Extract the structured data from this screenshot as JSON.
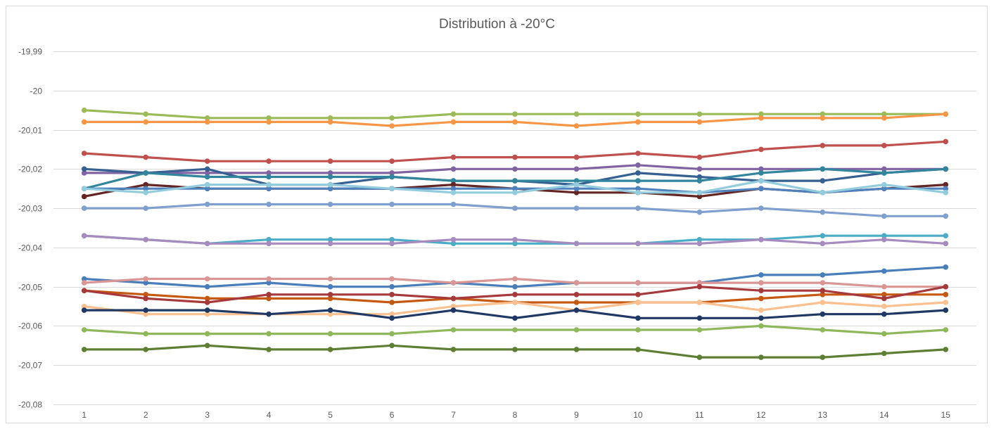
{
  "chart_data": {
    "type": "line",
    "title": "Distribution à -20°C",
    "xlabel": "",
    "ylabel": "",
    "x": [
      1,
      2,
      3,
      4,
      5,
      6,
      7,
      8,
      9,
      10,
      11,
      12,
      13,
      14,
      15
    ],
    "x_tick_labels": [
      "1",
      "2",
      "3",
      "4",
      "5",
      "6",
      "7",
      "8",
      "9",
      "10",
      "11",
      "12",
      "13",
      "14",
      "15"
    ],
    "ylim": [
      -20.08,
      -19.99
    ],
    "y_ticks": [
      -19.99,
      -20,
      -20.01,
      -20.02,
      -20.03,
      -20.04,
      -20.05,
      -20.06,
      -20.07,
      -20.08
    ],
    "y_tick_labels": [
      "-19,99",
      "-20",
      "-20,01",
      "-20,02",
      "-20,03",
      "-20,04",
      "-20,05",
      "-20,06",
      "-20,07",
      "-20,08"
    ],
    "grid": "horizontal",
    "legend": "none",
    "series": [
      {
        "color": "#9bbb59",
        "values": [
          -20.005,
          -20.006,
          -20.007,
          -20.007,
          -20.007,
          -20.007,
          -20.006,
          -20.006,
          -20.006,
          -20.006,
          -20.006,
          -20.006,
          -20.006,
          -20.006,
          -20.006
        ]
      },
      {
        "color": "#f79646",
        "values": [
          -20.008,
          -20.008,
          -20.008,
          -20.008,
          -20.008,
          -20.009,
          -20.008,
          -20.008,
          -20.009,
          -20.008,
          -20.008,
          -20.007,
          -20.007,
          -20.007,
          -20.006
        ]
      },
      {
        "color": "#c0504d",
        "values": [
          -20.016,
          -20.017,
          -20.018,
          -20.018,
          -20.018,
          -20.018,
          -20.017,
          -20.017,
          -20.017,
          -20.016,
          -20.017,
          -20.015,
          -20.014,
          -20.014,
          -20.013
        ]
      },
      {
        "color": "#8064a2",
        "values": [
          -20.021,
          -20.021,
          -20.021,
          -20.021,
          -20.021,
          -20.021,
          -20.02,
          -20.02,
          -20.02,
          -20.019,
          -20.02,
          -20.02,
          -20.02,
          -20.02,
          -20.02
        ]
      },
      {
        "color": "#376092",
        "values": [
          -20.02,
          -20.021,
          -20.02,
          -20.024,
          -20.024,
          -20.022,
          -20.023,
          -20.023,
          -20.024,
          -20.021,
          -20.022,
          -20.023,
          -20.023,
          -20.021,
          -20.02
        ]
      },
      {
        "color": "#31859c",
        "values": [
          -20.025,
          -20.021,
          -20.022,
          -20.022,
          -20.022,
          -20.022,
          -20.023,
          -20.023,
          -20.023,
          -20.023,
          -20.023,
          -20.021,
          -20.02,
          -20.021,
          -20.02
        ]
      },
      {
        "color": "#632523",
        "values": [
          -20.027,
          -20.024,
          -20.025,
          -20.025,
          -20.025,
          -20.025,
          -20.024,
          -20.025,
          -20.026,
          -20.026,
          -20.027,
          -20.025,
          -20.026,
          -20.025,
          -20.024
        ]
      },
      {
        "color": "#4f81bd",
        "values": [
          -20.025,
          -20.025,
          -20.025,
          -20.025,
          -20.025,
          -20.025,
          -20.025,
          -20.025,
          -20.025,
          -20.025,
          -20.026,
          -20.025,
          -20.026,
          -20.025,
          -20.025
        ]
      },
      {
        "color": "#93cddd",
        "values": [
          -20.025,
          -20.026,
          -20.024,
          -20.024,
          -20.024,
          -20.025,
          -20.026,
          -20.026,
          -20.024,
          -20.026,
          -20.026,
          -20.023,
          -20.026,
          -20.024,
          -20.026
        ]
      },
      {
        "color": "#7f9fcf",
        "values": [
          -20.03,
          -20.03,
          -20.029,
          -20.029,
          -20.029,
          -20.029,
          -20.029,
          -20.03,
          -20.03,
          -20.03,
          -20.031,
          -20.03,
          -20.031,
          -20.032,
          -20.032
        ]
      },
      {
        "color": "#4bacc6",
        "values": [
          -20.037,
          -20.038,
          -20.039,
          -20.038,
          -20.038,
          -20.038,
          -20.039,
          -20.039,
          -20.039,
          -20.039,
          -20.038,
          -20.038,
          -20.037,
          -20.037,
          -20.037
        ]
      },
      {
        "color": "#a68bbf",
        "values": [
          -20.037,
          -20.038,
          -20.039,
          -20.039,
          -20.039,
          -20.039,
          -20.038,
          -20.038,
          -20.039,
          -20.039,
          -20.039,
          -20.038,
          -20.039,
          -20.038,
          -20.039
        ]
      },
      {
        "color": "#4a7ebb",
        "values": [
          -20.048,
          -20.049,
          -20.05,
          -20.049,
          -20.05,
          -20.05,
          -20.049,
          -20.05,
          -20.049,
          -20.049,
          -20.049,
          -20.047,
          -20.047,
          -20.046,
          -20.045
        ]
      },
      {
        "color": "#d99694",
        "values": [
          -20.049,
          -20.048,
          -20.048,
          -20.048,
          -20.048,
          -20.048,
          -20.049,
          -20.048,
          -20.049,
          -20.049,
          -20.049,
          -20.049,
          -20.049,
          -20.05,
          -20.05
        ]
      },
      {
        "color": "#c65911",
        "values": [
          -20.051,
          -20.052,
          -20.053,
          -20.053,
          -20.053,
          -20.054,
          -20.053,
          -20.054,
          -20.054,
          -20.054,
          -20.054,
          -20.053,
          -20.052,
          -20.052,
          -20.052
        ]
      },
      {
        "color": "#a5393b",
        "values": [
          -20.051,
          -20.053,
          -20.054,
          -20.052,
          -20.052,
          -20.052,
          -20.053,
          -20.052,
          -20.052,
          -20.052,
          -20.05,
          -20.051,
          -20.051,
          -20.053,
          -20.05
        ]
      },
      {
        "color": "#fac090",
        "values": [
          -20.055,
          -20.057,
          -20.057,
          -20.057,
          -20.057,
          -20.057,
          -20.055,
          -20.054,
          -20.056,
          -20.054,
          -20.054,
          -20.056,
          -20.054,
          -20.055,
          -20.054
        ]
      },
      {
        "color": "#1f3864",
        "values": [
          -20.056,
          -20.056,
          -20.056,
          -20.057,
          -20.056,
          -20.058,
          -20.056,
          -20.058,
          -20.056,
          -20.058,
          -20.058,
          -20.058,
          -20.057,
          -20.057,
          -20.056
        ]
      },
      {
        "color": "#8fb85c",
        "values": [
          -20.061,
          -20.062,
          -20.062,
          -20.062,
          -20.062,
          -20.062,
          -20.061,
          -20.061,
          -20.061,
          -20.061,
          -20.061,
          -20.06,
          -20.061,
          -20.062,
          -20.061
        ]
      },
      {
        "color": "#5e7f33",
        "values": [
          -20.066,
          -20.066,
          -20.065,
          -20.066,
          -20.066,
          -20.065,
          -20.066,
          -20.066,
          -20.066,
          -20.066,
          -20.068,
          -20.068,
          -20.068,
          -20.067,
          -20.066
        ]
      }
    ]
  }
}
